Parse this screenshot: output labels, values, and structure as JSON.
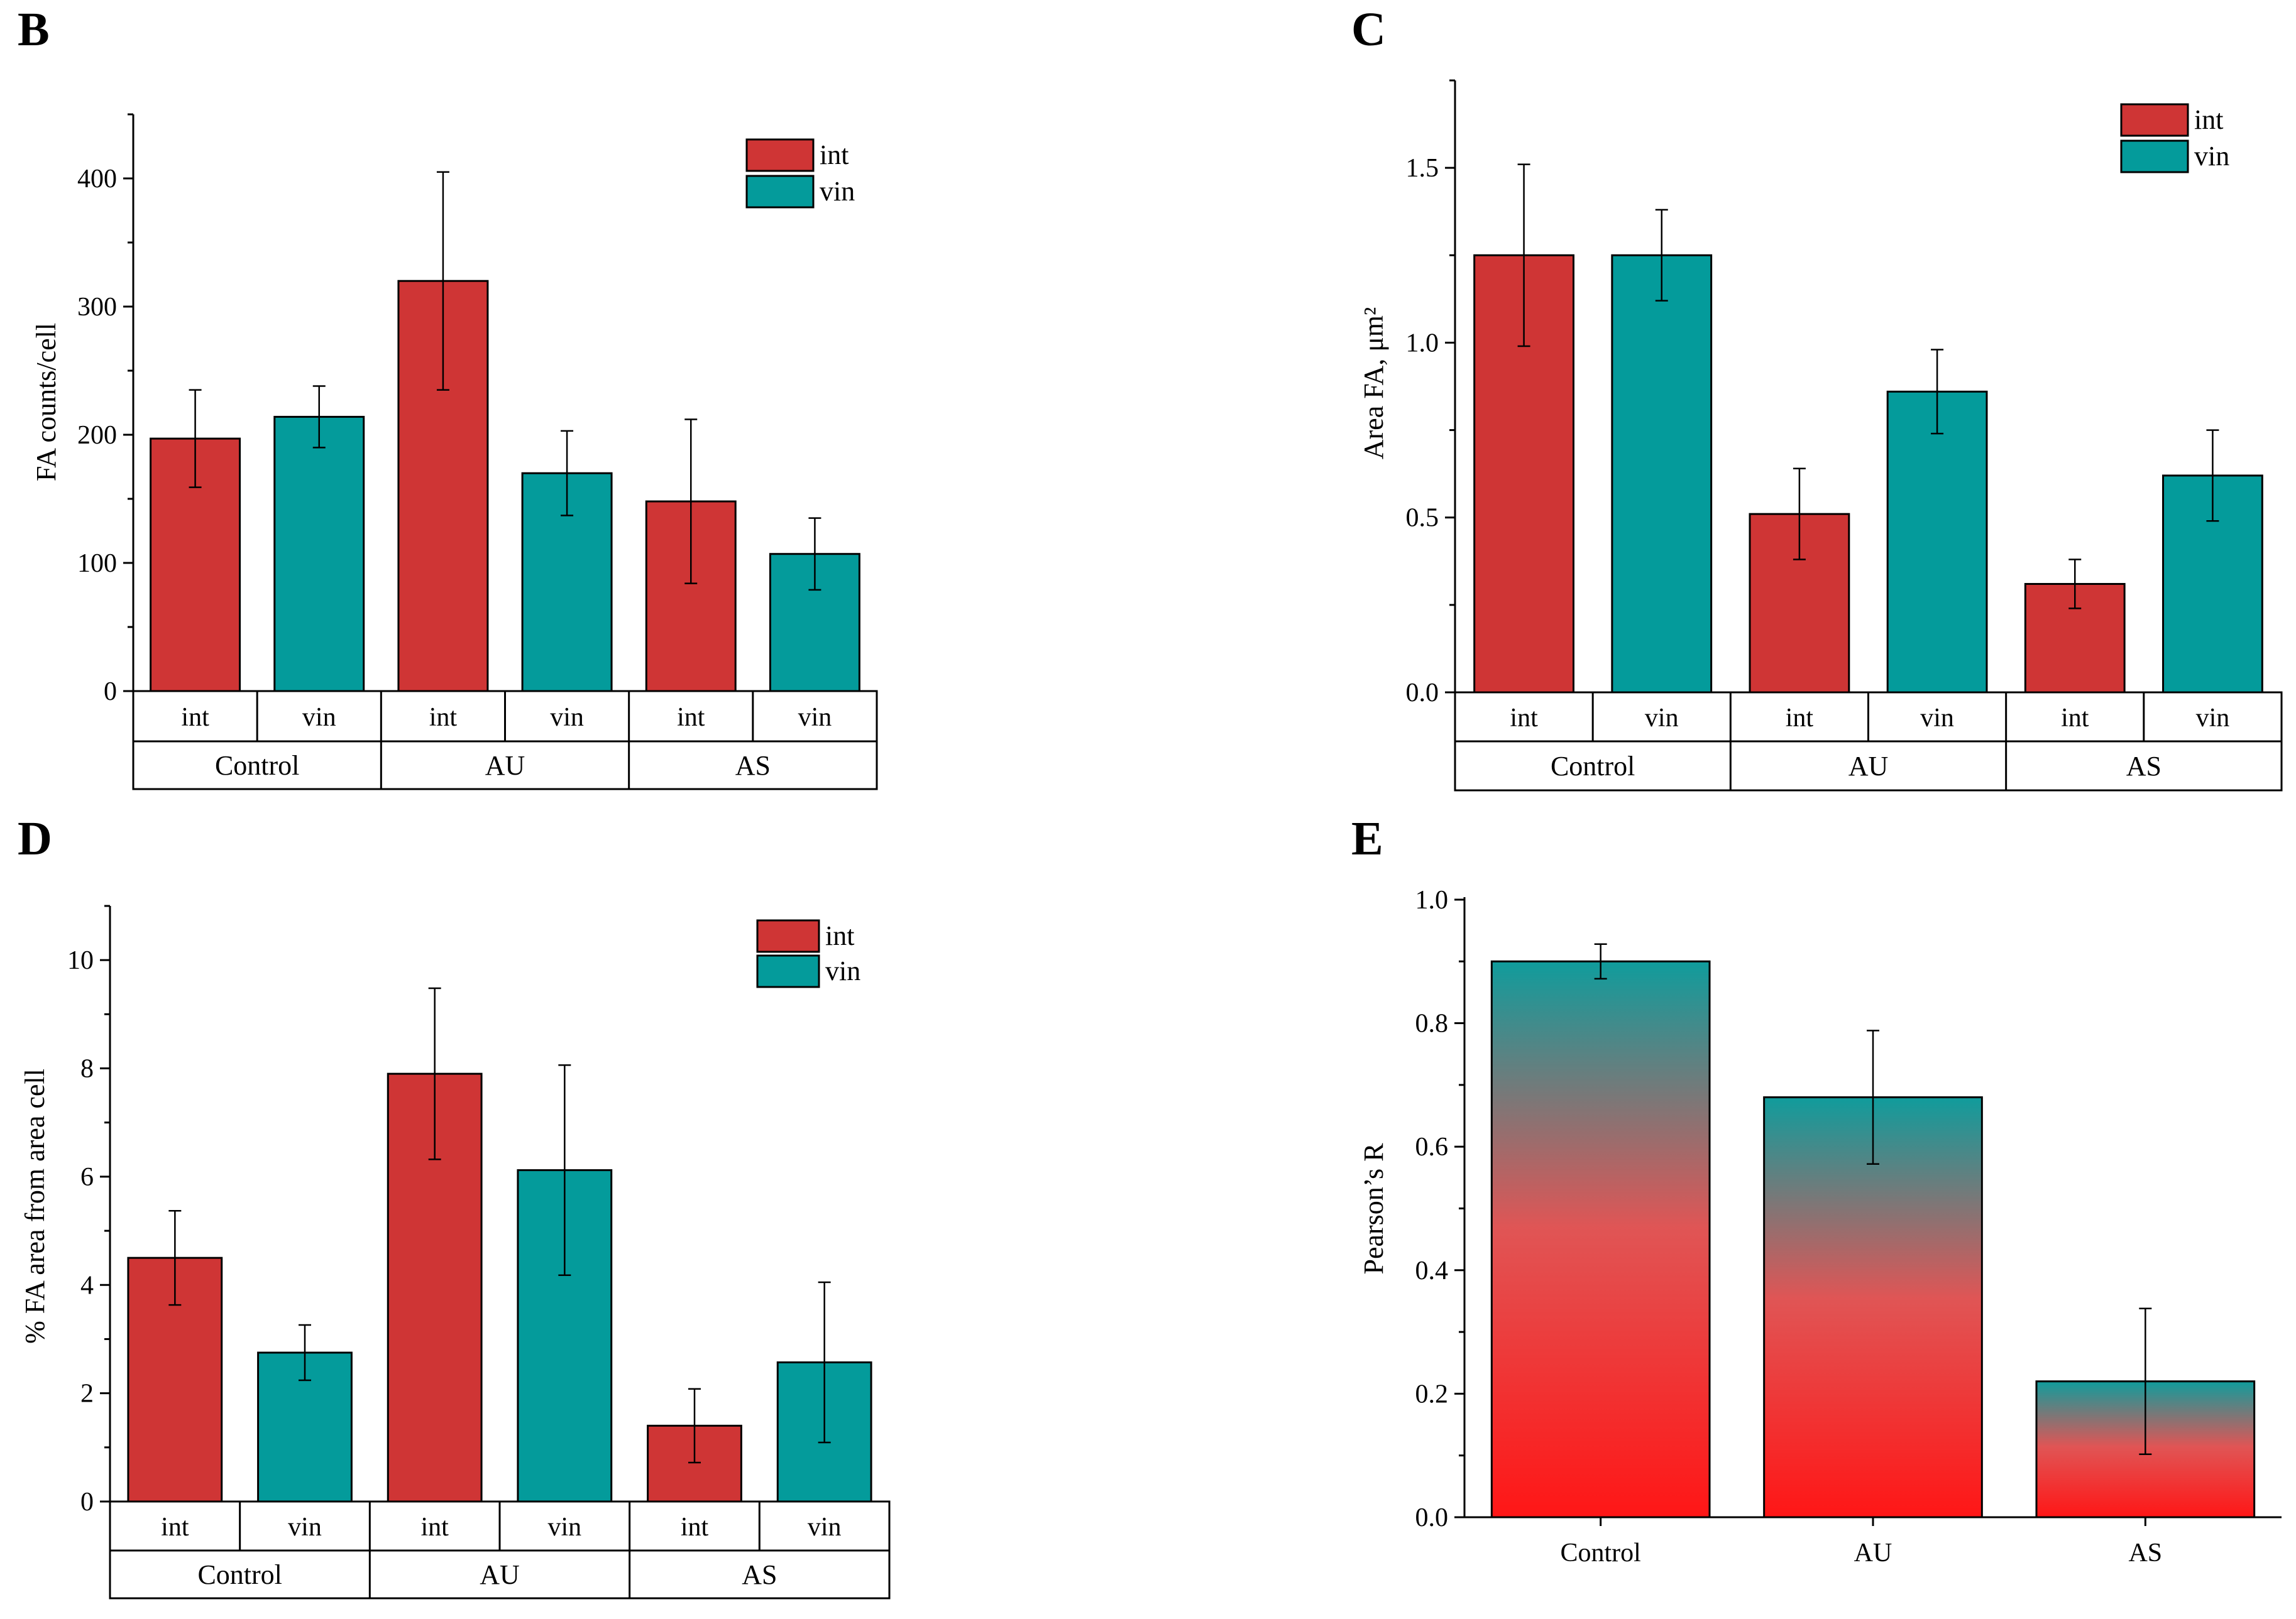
{
  "colors": {
    "int": "#cf3535",
    "vin": "#049b9b",
    "grad_top": "#109c9c",
    "grad_mid": "#e05555",
    "grad_bottom": "#ff1616"
  },
  "chart_data": [
    {
      "id": "B",
      "panel_label": "B",
      "type": "bar",
      "ylabel": "FA counts/cell",
      "ylim": [
        0,
        450
      ],
      "yticks": [
        0,
        100,
        200,
        300,
        400
      ],
      "ytick_labels": [
        "0",
        "100",
        "200",
        "300",
        "400"
      ],
      "categories": [
        "Control",
        "AU",
        "AS"
      ],
      "subcategories": [
        "int",
        "vin"
      ],
      "legend": [
        "int",
        "vin"
      ],
      "legend_position": "top-right",
      "series": [
        {
          "name": "int",
          "values": [
            197,
            320,
            148
          ],
          "errors": [
            38,
            85,
            64
          ]
        },
        {
          "name": "vin",
          "values": [
            214,
            170,
            107
          ],
          "errors": [
            24,
            33,
            28
          ]
        }
      ]
    },
    {
      "id": "C",
      "panel_label": "C",
      "type": "bar",
      "ylabel": "Area FA, μm²",
      "ylim": [
        0,
        1.75
      ],
      "yticks": [
        0,
        0.5,
        1.0,
        1.5
      ],
      "ytick_labels": [
        "0.0",
        "0.5",
        "1.0",
        "1.5"
      ],
      "categories": [
        "Control",
        "AU",
        "AS"
      ],
      "subcategories": [
        "int",
        "vin"
      ],
      "legend": [
        "int",
        "vin"
      ],
      "legend_position": "top-right",
      "series": [
        {
          "name": "int",
          "values": [
            1.25,
            0.51,
            0.31
          ],
          "errors": [
            0.26,
            0.13,
            0.07
          ]
        },
        {
          "name": "vin",
          "values": [
            1.25,
            0.86,
            0.62
          ],
          "errors": [
            0.13,
            0.12,
            0.13
          ]
        }
      ]
    },
    {
      "id": "D",
      "panel_label": "D",
      "type": "bar",
      "ylabel": "% FA area from area cell",
      "ylim": [
        0,
        11
      ],
      "yticks": [
        0,
        2,
        4,
        6,
        8,
        10
      ],
      "ytick_labels": [
        "0",
        "2",
        "4",
        "6",
        "8",
        "10"
      ],
      "categories": [
        "Control",
        "AU",
        "AS"
      ],
      "subcategories": [
        "int",
        "vin"
      ],
      "legend": [
        "int",
        "vin"
      ],
      "legend_position": "top-right",
      "series": [
        {
          "name": "int",
          "values": [
            4.5,
            7.9,
            1.4
          ],
          "errors": [
            0.87,
            1.58,
            0.68
          ]
        },
        {
          "name": "vin",
          "values": [
            2.75,
            6.12,
            2.57
          ],
          "errors": [
            0.51,
            1.94,
            1.48
          ]
        }
      ]
    },
    {
      "id": "E",
      "panel_label": "E",
      "type": "bar",
      "ylabel": "Pearson’s R",
      "ylim": [
        0,
        1.0
      ],
      "yticks": [
        0,
        0.2,
        0.4,
        0.6,
        0.8,
        1.0
      ],
      "ytick_labels": [
        "0.0",
        "0.2",
        "0.4",
        "0.6",
        "0.8",
        "1.0"
      ],
      "categories": [
        "Control",
        "AU",
        "AS"
      ],
      "values": [
        0.9,
        0.68,
        0.22
      ],
      "errors": [
        0.028,
        0.108,
        0.118
      ]
    }
  ]
}
